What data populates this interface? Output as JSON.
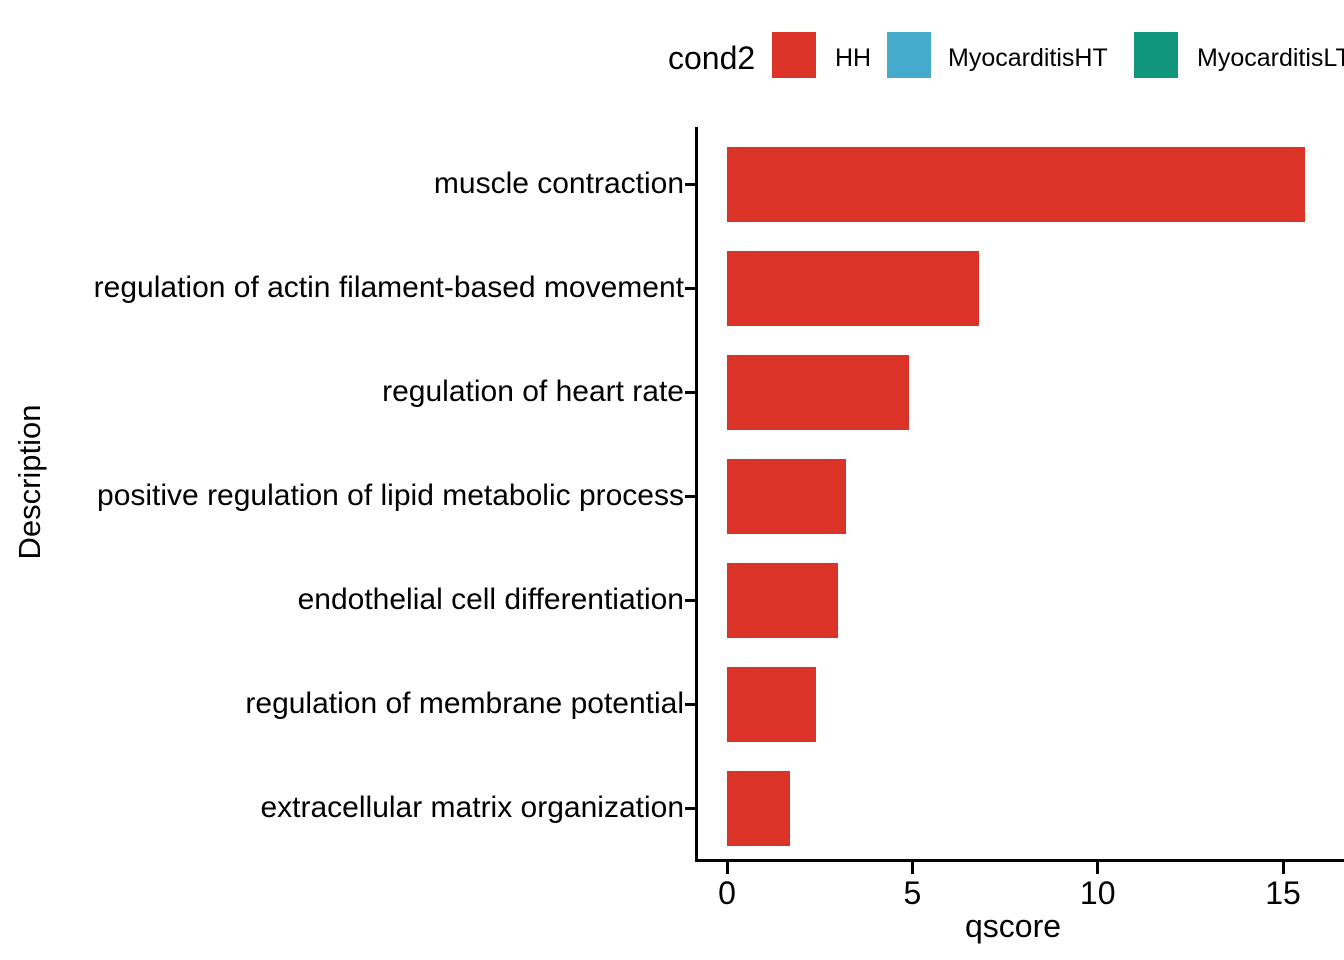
{
  "chart_data": {
    "type": "bar",
    "orientation": "horizontal",
    "title": "",
    "xlabel": "qscore",
    "ylabel": "Description",
    "categories": [
      "muscle contraction",
      "regulation of actin filament-based movement",
      "regulation of heart rate",
      "positive regulation of lipid metabolic process",
      "endothelial cell differentiation",
      "regulation of membrane potential",
      "extracellular matrix organization"
    ],
    "values": [
      15.6,
      6.8,
      4.9,
      3.2,
      3.0,
      2.4,
      1.7
    ],
    "series_name": "HH",
    "bar_color": "#DB3328",
    "xticks": [
      0,
      5,
      10,
      15
    ],
    "xlim": [
      0,
      16.6
    ],
    "grid": "off",
    "legend": {
      "title": "cond2",
      "position": "top",
      "entries": [
        {
          "label": "HH",
          "color": "#DB3328"
        },
        {
          "label": "MyocarditisHT",
          "color": "#45AACB"
        },
        {
          "label": "MyocarditisLT",
          "color": "#11967B"
        }
      ]
    }
  }
}
